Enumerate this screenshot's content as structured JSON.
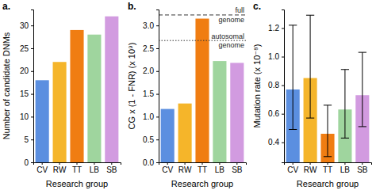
{
  "chart_data": [
    {
      "type": "bar",
      "title": "a.",
      "x_label": "Research group",
      "y_label": "Number of candidate DNMs",
      "categories": [
        "CV",
        "RW",
        "TT",
        "LB",
        "SB"
      ],
      "values": [
        18,
        22,
        29,
        28,
        32
      ],
      "colors": [
        "#5b8fe0",
        "#f5b52a",
        "#f07d12",
        "#9fd59e",
        "#d29be0"
      ],
      "ylim": [
        0,
        33.5
      ],
      "yticks": [
        0,
        5,
        10,
        15,
        20,
        25,
        30
      ]
    },
    {
      "type": "bar",
      "title": "b.",
      "x_label": "Research group",
      "y_label": "CG x (1 - FNR) (x 10⁹)",
      "categories": [
        "CV",
        "RW",
        "TT",
        "LB",
        "SB"
      ],
      "values": [
        1.17,
        1.29,
        3.15,
        2.22,
        2.18
      ],
      "colors": [
        "#5b8fe0",
        "#f5b52a",
        "#f07d12",
        "#9fd59e",
        "#d29be0"
      ],
      "ylim": [
        0,
        3.35
      ],
      "yticks": [
        {
          "value": 0,
          "label": "0.0"
        },
        0.5,
        {
          "value": 1,
          "label": "1.0"
        },
        1.5,
        {
          "value": 2,
          "label": "2.0"
        },
        2.5,
        {
          "value": 3,
          "label": "3.0"
        }
      ],
      "reference_lines": [
        {
          "value": 3.23,
          "label": "full genome",
          "line_style": "dashed"
        },
        {
          "value": 2.67,
          "label": "autosomal genome",
          "line_style": "dotted"
        }
      ]
    },
    {
      "type": "bar",
      "title": "c.",
      "x_label": "Research group",
      "y_label": "Mutation rate (x 10⁻⁸)",
      "categories": [
        "CV",
        "RW",
        "TT",
        "LB",
        "SB"
      ],
      "values": [
        0.77,
        0.85,
        0.46,
        0.63,
        0.73
      ],
      "error_bounds": [
        [
          0.49,
          1.22
        ],
        [
          0.57,
          1.29
        ],
        [
          0.3,
          0.66
        ],
        [
          0.43,
          0.91
        ],
        [
          0.51,
          1.03
        ]
      ],
      "colors": [
        "#5b8fe0",
        "#f5b52a",
        "#f07d12",
        "#9fd59e",
        "#d29be0"
      ],
      "ylim": [
        0.26,
        1.33
      ],
      "yticks": [
        0.4,
        0.6,
        0.8,
        {
          "value": 1,
          "label": "1.0"
        },
        1.2
      ]
    }
  ]
}
